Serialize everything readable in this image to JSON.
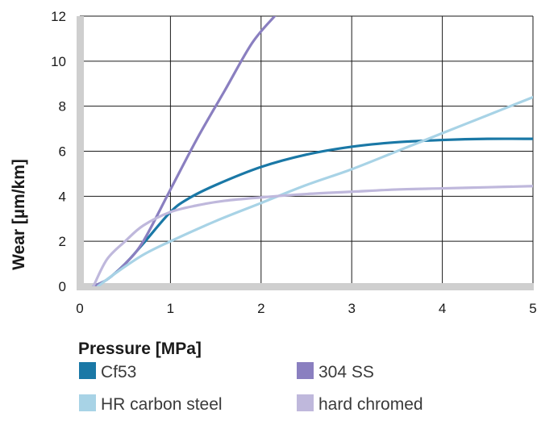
{
  "chart_data": {
    "type": "line",
    "title": "",
    "xlabel": "Pressure [MPa]",
    "ylabel": "Wear [µm/km]",
    "xlim": [
      0,
      5
    ],
    "ylim": [
      0,
      12
    ],
    "x_ticks": [
      "0",
      "1",
      "2",
      "3",
      "4",
      "5"
    ],
    "y_ticks": [
      "0",
      "2",
      "4",
      "6",
      "8",
      "10",
      "12"
    ],
    "grid": true,
    "legend_position": "bottom",
    "series": [
      {
        "name": "Cf53",
        "color": "#1a78a6",
        "x": [
          0.15,
          0.3,
          0.5,
          0.7,
          1.0,
          1.2,
          1.5,
          2.0,
          2.5,
          3.0,
          3.5,
          4.0,
          4.5,
          5.0
        ],
        "y": [
          0.0,
          0.3,
          1.0,
          1.9,
          3.3,
          3.9,
          4.5,
          5.3,
          5.85,
          6.2,
          6.4,
          6.5,
          6.55,
          6.55
        ]
      },
      {
        "name": "304 SS",
        "color": "#8a7fc0",
        "x": [
          0.15,
          0.3,
          0.5,
          0.7,
          1.0,
          1.3,
          1.6,
          1.9,
          2.15
        ],
        "y": [
          0.0,
          0.3,
          1.0,
          2.0,
          4.3,
          6.6,
          8.7,
          10.8,
          12.0
        ]
      },
      {
        "name": "HR carbon steel",
        "color": "#a8d3e6",
        "x": [
          0.2,
          0.4,
          0.7,
          1.0,
          1.5,
          2.0,
          2.5,
          3.0,
          3.5,
          4.0,
          4.5,
          5.0
        ],
        "y": [
          0.0,
          0.6,
          1.4,
          2.0,
          2.9,
          3.7,
          4.5,
          5.2,
          6.0,
          6.8,
          7.6,
          8.4
        ]
      },
      {
        "name": "hard chromed",
        "color": "#bfb8dc",
        "x": [
          0.15,
          0.3,
          0.5,
          0.7,
          1.0,
          1.3,
          1.6,
          2.0,
          2.5,
          3.0,
          3.5,
          4.0,
          4.5,
          5.0
        ],
        "y": [
          0.0,
          1.2,
          2.0,
          2.7,
          3.3,
          3.6,
          3.8,
          3.95,
          4.1,
          4.2,
          4.3,
          4.35,
          4.4,
          4.45
        ]
      }
    ]
  }
}
